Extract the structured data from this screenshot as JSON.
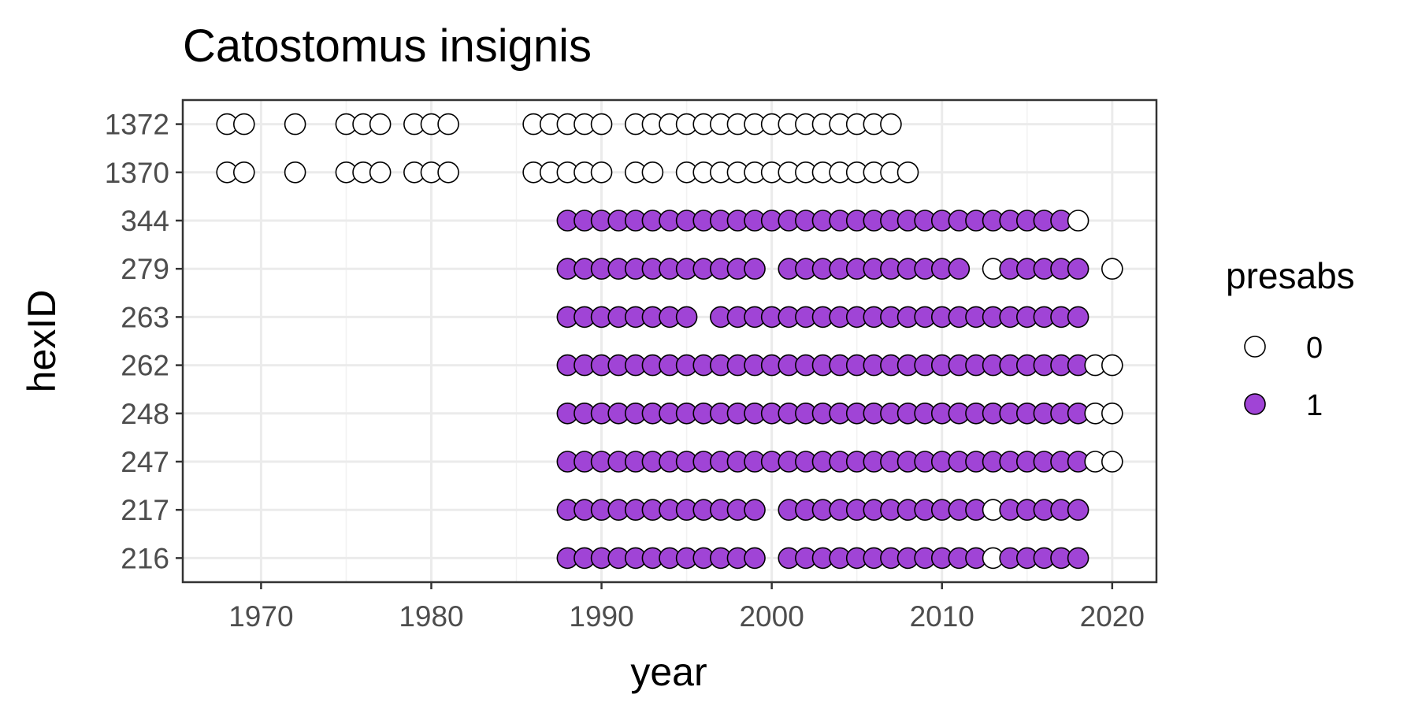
{
  "chart_data": {
    "type": "scatter",
    "title": "Catostomus insignis",
    "xlabel": "year",
    "ylabel": "hexID",
    "xlim": [
      1965.4,
      2022.6
    ],
    "x_ticks": [
      1970,
      1980,
      1990,
      2000,
      2010,
      2020
    ],
    "categories": [
      "216",
      "217",
      "247",
      "248",
      "262",
      "263",
      "279",
      "344",
      "1370",
      "1372"
    ],
    "legend": {
      "title": "presabs",
      "placement": "right",
      "entries": [
        {
          "label": "0",
          "fill": "#ffffff"
        },
        {
          "label": "1",
          "fill": "#a044d6"
        }
      ]
    },
    "grid": true,
    "colors": {
      "absent": "#ffffff",
      "present": "#a044d6",
      "outline": "#000000"
    },
    "series": [
      {
        "hexID": "1372",
        "presence": [],
        "absence": [
          1968,
          1969,
          1972,
          1975,
          1976,
          1977,
          1979,
          1980,
          1981,
          1986,
          1987,
          1988,
          1989,
          1990,
          1992,
          1993,
          1994,
          1995,
          1996,
          1997,
          1998,
          1999,
          2000,
          2001,
          2002,
          2003,
          2004,
          2005,
          2006,
          2007
        ]
      },
      {
        "hexID": "1370",
        "presence": [],
        "absence": [
          1968,
          1969,
          1972,
          1975,
          1976,
          1977,
          1979,
          1980,
          1981,
          1986,
          1987,
          1988,
          1989,
          1990,
          1992,
          1993,
          1995,
          1996,
          1997,
          1998,
          1999,
          2000,
          2001,
          2002,
          2003,
          2004,
          2005,
          2006,
          2007,
          2008
        ]
      },
      {
        "hexID": "344",
        "presence": [
          1988,
          1989,
          1990,
          1991,
          1992,
          1993,
          1994,
          1995,
          1996,
          1997,
          1998,
          1999,
          2000,
          2001,
          2002,
          2003,
          2004,
          2005,
          2006,
          2007,
          2008,
          2009,
          2010,
          2011,
          2012,
          2013,
          2014,
          2015,
          2016,
          2017
        ],
        "absence": [
          2018
        ]
      },
      {
        "hexID": "279",
        "presence": [
          1988,
          1989,
          1990,
          1991,
          1992,
          1993,
          1994,
          1995,
          1996,
          1997,
          1998,
          1999,
          2001,
          2002,
          2003,
          2004,
          2005,
          2006,
          2007,
          2008,
          2009,
          2010,
          2011,
          2014,
          2015,
          2016,
          2017,
          2018
        ],
        "absence": [
          2013,
          2020
        ]
      },
      {
        "hexID": "263",
        "presence": [
          1988,
          1989,
          1990,
          1991,
          1992,
          1993,
          1994,
          1995,
          1997,
          1998,
          1999,
          2000,
          2001,
          2002,
          2003,
          2004,
          2005,
          2006,
          2007,
          2008,
          2009,
          2010,
          2011,
          2012,
          2013,
          2014,
          2015,
          2016,
          2017,
          2018
        ],
        "absence": []
      },
      {
        "hexID": "262",
        "presence": [
          1988,
          1989,
          1990,
          1991,
          1992,
          1993,
          1994,
          1995,
          1996,
          1997,
          1998,
          1999,
          2000,
          2001,
          2002,
          2003,
          2004,
          2005,
          2006,
          2007,
          2008,
          2009,
          2010,
          2011,
          2012,
          2013,
          2014,
          2015,
          2016,
          2017,
          2018
        ],
        "absence": [
          2019,
          2020
        ]
      },
      {
        "hexID": "248",
        "presence": [
          1988,
          1989,
          1990,
          1991,
          1992,
          1993,
          1994,
          1995,
          1996,
          1997,
          1998,
          1999,
          2000,
          2001,
          2002,
          2003,
          2004,
          2005,
          2006,
          2007,
          2008,
          2009,
          2010,
          2011,
          2012,
          2013,
          2014,
          2015,
          2016,
          2017,
          2018
        ],
        "absence": [
          2019,
          2020
        ]
      },
      {
        "hexID": "247",
        "presence": [
          1988,
          1989,
          1990,
          1991,
          1992,
          1993,
          1994,
          1995,
          1996,
          1997,
          1998,
          1999,
          2000,
          2001,
          2002,
          2003,
          2004,
          2005,
          2006,
          2007,
          2008,
          2009,
          2010,
          2011,
          2012,
          2013,
          2014,
          2015,
          2016,
          2017,
          2018
        ],
        "absence": [
          2019,
          2020
        ]
      },
      {
        "hexID": "217",
        "presence": [
          1988,
          1989,
          1990,
          1991,
          1992,
          1993,
          1994,
          1995,
          1996,
          1997,
          1998,
          1999,
          2001,
          2002,
          2003,
          2004,
          2005,
          2006,
          2007,
          2008,
          2009,
          2010,
          2011,
          2012,
          2014,
          2015,
          2016,
          2017,
          2018
        ],
        "absence": [
          2013
        ]
      },
      {
        "hexID": "216",
        "presence": [
          1988,
          1989,
          1990,
          1991,
          1992,
          1993,
          1994,
          1995,
          1996,
          1997,
          1998,
          1999,
          2001,
          2002,
          2003,
          2004,
          2005,
          2006,
          2007,
          2008,
          2009,
          2010,
          2011,
          2012,
          2014,
          2015,
          2016,
          2017,
          2018
        ],
        "absence": [
          2013
        ]
      }
    ]
  }
}
